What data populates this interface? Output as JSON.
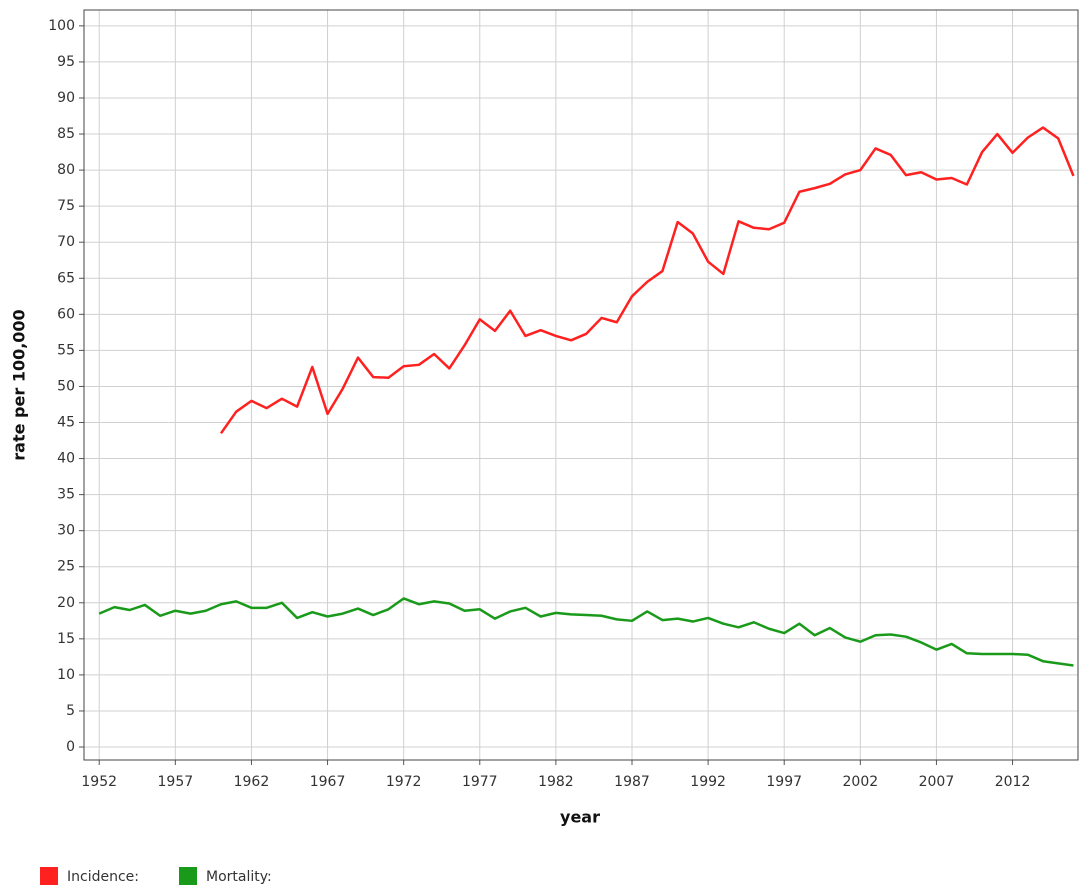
{
  "chart_data": {
    "type": "line",
    "xlabel": "year",
    "ylabel": "rate per 100,000",
    "x": [
      1952,
      1953,
      1954,
      1955,
      1956,
      1957,
      1958,
      1959,
      1960,
      1961,
      1962,
      1963,
      1964,
      1965,
      1966,
      1967,
      1968,
      1969,
      1970,
      1971,
      1972,
      1973,
      1974,
      1975,
      1976,
      1977,
      1978,
      1979,
      1980,
      1981,
      1982,
      1983,
      1984,
      1985,
      1986,
      1987,
      1988,
      1989,
      1990,
      1991,
      1992,
      1993,
      1994,
      1995,
      1996,
      1997,
      1998,
      1999,
      2000,
      2001,
      2002,
      2003,
      2004,
      2005,
      2006,
      2007,
      2008,
      2009,
      2010,
      2011,
      2012,
      2013,
      2014,
      2015,
      2016
    ],
    "series": [
      {
        "name": "Incidence:",
        "color": "#ff2020",
        "values": [
          null,
          null,
          null,
          null,
          null,
          null,
          null,
          null,
          43.5,
          46.5,
          48,
          47,
          48.3,
          47.2,
          52.7,
          46.2,
          49.7,
          54,
          51.3,
          51.2,
          52.8,
          53,
          54.5,
          52.5,
          55.7,
          59.3,
          57.7,
          60.5,
          57,
          57.8,
          57,
          56.4,
          57.3,
          59.5,
          58.9,
          62.5,
          64.5,
          66,
          72.8,
          71.2,
          67.3,
          65.6,
          72.9,
          72,
          71.8,
          72.7,
          77,
          77.5,
          78.1,
          79.4,
          80,
          83,
          82.1,
          79.3,
          79.7,
          78.7,
          78.9,
          78,
          82.5,
          85,
          82.4,
          84.5,
          85.9,
          84.4,
          79.2
        ]
      },
      {
        "name": "Mortality:",
        "color": "#1a9a1a",
        "values": [
          18.5,
          19.4,
          19,
          19.7,
          18.2,
          18.9,
          18.5,
          18.9,
          19.8,
          20.2,
          19.3,
          19.3,
          20,
          17.9,
          18.7,
          18.1,
          18.5,
          19.2,
          18.3,
          19.1,
          20.6,
          19.8,
          20.2,
          19.9,
          18.9,
          19.1,
          17.8,
          18.8,
          19.3,
          18.1,
          18.6,
          18.4,
          18.3,
          18.2,
          17.7,
          17.5,
          18.8,
          17.6,
          17.8,
          17.4,
          17.9,
          17.1,
          16.6,
          17.3,
          16.4,
          15.8,
          17.1,
          15.5,
          16.5,
          15.2,
          14.6,
          15.5,
          15.6,
          15.3,
          14.5,
          13.5,
          14.3,
          13,
          12.9,
          12.9,
          12.9,
          12.8,
          11.9,
          11.6,
          11.3
        ]
      }
    ],
    "xlim": [
      1951,
      2016.3
    ],
    "xticks": [
      1952,
      1957,
      1962,
      1967,
      1972,
      1977,
      1982,
      1987,
      1992,
      1997,
      2002,
      2007,
      2012
    ],
    "ylim": [
      -1.8,
      102.2
    ],
    "yticks": [
      0,
      5,
      10,
      15,
      20,
      25,
      30,
      35,
      40,
      45,
      50,
      55,
      60,
      65,
      70,
      75,
      80,
      85,
      90,
      95,
      100
    ],
    "grid": true,
    "legend": "bottom-left"
  }
}
